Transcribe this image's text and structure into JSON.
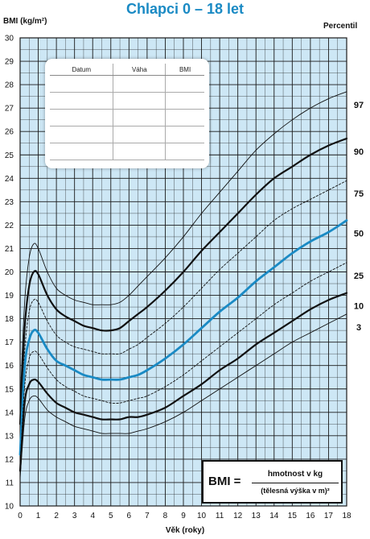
{
  "chart_data": {
    "type": "line",
    "title": "Chlapci 0 – 18 let",
    "ylabel": "BMI (kg/m²)",
    "xlabel": "Věk (roky)",
    "legend_title": "Percentil",
    "xlim": [
      0,
      18
    ],
    "ylim": [
      10,
      30
    ],
    "x_ticks": [
      0,
      1,
      2,
      3,
      4,
      5,
      6,
      7,
      8,
      9,
      10,
      11,
      12,
      13,
      14,
      15,
      16,
      17,
      18
    ],
    "y_ticks": [
      10,
      11,
      12,
      13,
      14,
      15,
      16,
      17,
      18,
      19,
      20,
      21,
      22,
      23,
      24,
      25,
      26,
      27,
      28,
      29,
      30
    ],
    "grid": true,
    "legend_position": "right",
    "colors": {
      "background": "#cde7f5",
      "grid": "#1a1a1a",
      "highlight": "#1a8ac4",
      "line": "#111111"
    },
    "series": [
      {
        "name": "97",
        "style": "thin",
        "x": [
          0,
          0.25,
          0.5,
          0.75,
          1,
          1.5,
          2,
          2.5,
          3,
          3.5,
          4,
          4.5,
          5,
          5.5,
          6,
          6.5,
          7,
          8,
          9,
          10,
          11,
          12,
          13,
          14,
          15,
          16,
          17,
          18
        ],
        "y": [
          14.4,
          18.7,
          20.6,
          21.2,
          21.0,
          20.0,
          19.3,
          19.0,
          18.8,
          18.7,
          18.6,
          18.6,
          18.6,
          18.7,
          19.0,
          19.4,
          19.8,
          20.6,
          21.5,
          22.5,
          23.4,
          24.3,
          25.2,
          25.9,
          26.5,
          27.0,
          27.4,
          27.7
        ]
      },
      {
        "name": "90",
        "style": "thick",
        "x": [
          0,
          0.25,
          0.5,
          0.75,
          1,
          1.5,
          2,
          2.5,
          3,
          3.5,
          4,
          4.5,
          5,
          5.5,
          6,
          6.5,
          7,
          8,
          9,
          10,
          11,
          12,
          13,
          14,
          15,
          16,
          17,
          18
        ],
        "y": [
          13.5,
          17.6,
          19.4,
          20.0,
          19.9,
          19.0,
          18.4,
          18.1,
          17.9,
          17.7,
          17.6,
          17.5,
          17.5,
          17.6,
          17.9,
          18.2,
          18.5,
          19.2,
          20.0,
          20.9,
          21.7,
          22.5,
          23.3,
          24.0,
          24.5,
          25.0,
          25.4,
          25.7
        ]
      },
      {
        "name": "75",
        "style": "dashed",
        "x": [
          0,
          0.25,
          0.5,
          0.75,
          1,
          1.5,
          2,
          2.5,
          3,
          3.5,
          4,
          4.5,
          5,
          5.5,
          6,
          6.5,
          7,
          8,
          9,
          10,
          11,
          12,
          13,
          14,
          15,
          16,
          17,
          18
        ],
        "y": [
          12.8,
          16.6,
          18.3,
          18.8,
          18.7,
          17.9,
          17.3,
          17.0,
          16.8,
          16.7,
          16.6,
          16.5,
          16.5,
          16.5,
          16.7,
          16.9,
          17.2,
          17.8,
          18.5,
          19.3,
          20.1,
          20.8,
          21.5,
          22.2,
          22.7,
          23.1,
          23.5,
          23.9
        ]
      },
      {
        "name": "50",
        "style": "blue",
        "x": [
          0,
          0.25,
          0.5,
          0.75,
          1,
          1.5,
          2,
          2.5,
          3,
          3.5,
          4,
          4.5,
          5,
          5.5,
          6,
          6.5,
          7,
          8,
          9,
          10,
          11,
          12,
          13,
          14,
          15,
          16,
          17,
          18
        ],
        "y": [
          12.2,
          15.9,
          17.1,
          17.5,
          17.4,
          16.7,
          16.2,
          16.0,
          15.8,
          15.6,
          15.5,
          15.4,
          15.4,
          15.4,
          15.5,
          15.6,
          15.8,
          16.3,
          16.9,
          17.6,
          18.3,
          18.9,
          19.6,
          20.2,
          20.8,
          21.3,
          21.7,
          22.2
        ]
      },
      {
        "name": "25",
        "style": "dashed",
        "x": [
          0,
          0.25,
          0.5,
          0.75,
          1,
          1.5,
          2,
          2.5,
          3,
          3.5,
          4,
          4.5,
          5,
          5.5,
          6,
          6.5,
          7,
          8,
          9,
          10,
          11,
          12,
          13,
          14,
          15,
          16,
          17,
          18
        ],
        "y": [
          11.8,
          15.1,
          16.3,
          16.6,
          16.5,
          15.9,
          15.4,
          15.1,
          14.9,
          14.7,
          14.6,
          14.5,
          14.4,
          14.4,
          14.5,
          14.6,
          14.7,
          15.1,
          15.6,
          16.2,
          16.8,
          17.4,
          18.0,
          18.6,
          19.1,
          19.6,
          20.0,
          20.4
        ]
      },
      {
        "name": "10",
        "style": "thick",
        "x": [
          0,
          0.25,
          0.5,
          0.75,
          1,
          1.5,
          2,
          2.5,
          3,
          3.5,
          4,
          4.5,
          5,
          5.5,
          6,
          6.5,
          7,
          8,
          9,
          10,
          11,
          12,
          13,
          14,
          15,
          16,
          17,
          18
        ],
        "y": [
          11.5,
          14.4,
          15.2,
          15.4,
          15.3,
          14.8,
          14.4,
          14.2,
          14.0,
          13.9,
          13.8,
          13.7,
          13.7,
          13.7,
          13.8,
          13.8,
          13.9,
          14.2,
          14.7,
          15.2,
          15.8,
          16.3,
          16.9,
          17.4,
          17.9,
          18.4,
          18.8,
          19.1
        ]
      },
      {
        "name": "3",
        "style": "thin",
        "x": [
          0,
          0.25,
          0.5,
          0.75,
          1,
          1.5,
          2,
          2.5,
          3,
          3.5,
          4,
          4.5,
          5,
          5.5,
          6,
          6.5,
          7,
          8,
          9,
          10,
          11,
          12,
          13,
          14,
          15,
          16,
          17,
          18
        ],
        "y": [
          11.2,
          13.7,
          14.5,
          14.7,
          14.6,
          14.1,
          13.8,
          13.6,
          13.4,
          13.3,
          13.2,
          13.1,
          13.1,
          13.1,
          13.1,
          13.2,
          13.3,
          13.6,
          14.0,
          14.5,
          15.0,
          15.5,
          16.0,
          16.5,
          17.0,
          17.4,
          17.8,
          18.2
        ]
      }
    ]
  },
  "record_table": {
    "headers": [
      "Datum",
      "Váha",
      "BMI"
    ]
  },
  "formula": {
    "lhs": "BMI =",
    "numerator": "hmotnost v kg",
    "denominator": "(tělesná výška v m)²"
  }
}
